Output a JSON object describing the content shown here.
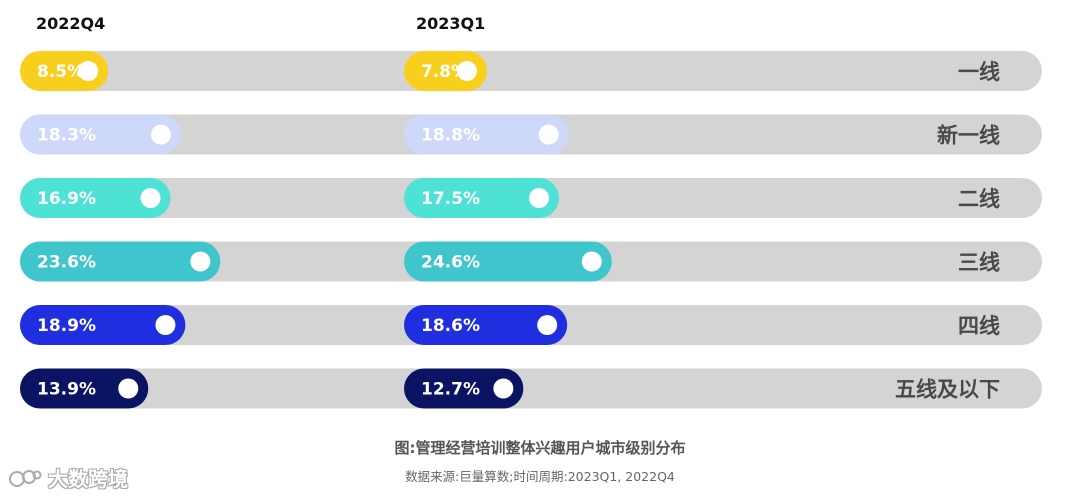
{
  "chart_data": {
    "type": "bar",
    "categories": [
      "一线",
      "新一线",
      "二线",
      "三线",
      "四线",
      "五线及以下"
    ],
    "series": [
      {
        "name": "2022Q4",
        "values": [
          8.5,
          18.3,
          16.9,
          23.6,
          18.9,
          13.9
        ]
      },
      {
        "name": "2023Q1",
        "values": [
          7.8,
          18.8,
          17.5,
          24.6,
          18.6,
          12.7
        ]
      }
    ],
    "value_labels": [
      [
        "8.5%",
        "18.3%",
        "16.9%",
        "23.6%",
        "18.9%",
        "13.9%"
      ],
      [
        "7.8%",
        "18.8%",
        "17.5%",
        "24.6%",
        "18.6%",
        "12.7%"
      ]
    ],
    "unit": "%",
    "category_colors": [
      "#f7cf1c",
      "#cdd8fb",
      "#4ee2d6",
      "#3ec6cc",
      "#1f2fe0",
      "#0a1462"
    ],
    "track_color": "#d4d4d4",
    "label_color_light": "#ffffff",
    "category_label_color": "#4a4a4a",
    "legend_placement": "top",
    "grid": false
  },
  "caption": {
    "title": "图:管理经营培训整体兴趣用户城市级别分布",
    "source": "数据来源:巨量算数;时间周期:2023Q1, 2022Q4"
  },
  "watermark": {
    "text": "大数跨境",
    "icon": "logo-mark-icon"
  }
}
